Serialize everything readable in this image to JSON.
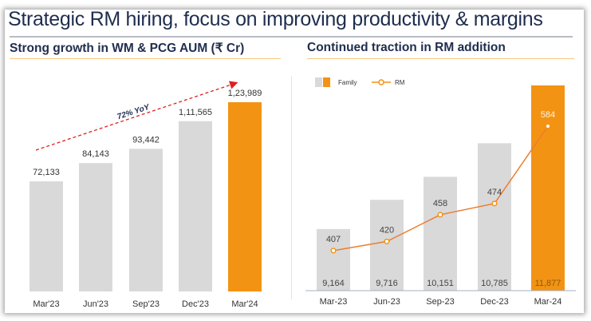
{
  "title": "Strategic RM hiring, focus on improving productivity & margins",
  "colors": {
    "gray_bar": "#d9d9d9",
    "orange": "#f39313",
    "line": "#ed7d31",
    "arrow": "#e02020",
    "text": "#1f2d4e"
  },
  "chart_data": [
    {
      "type": "bar",
      "title": "Strong growth in WM & PCG AUM (₹ Cr)",
      "categories": [
        "Mar'23",
        "Jun'23",
        "Sep'23",
        "Dec'23",
        "Mar'24"
      ],
      "values": [
        72133,
        84143,
        93442,
        111565,
        123989
      ],
      "labels": [
        "72,133",
        "84,143",
        "93,442",
        "1,11,565",
        "1,23,989"
      ],
      "ylim": [
        0,
        124000
      ],
      "annotation": "72% YoY",
      "grid": false
    },
    {
      "type": "bar+line",
      "title": "Continued traction in RM addition",
      "categories": [
        "Mar-23",
        "Jun-23",
        "Sep-23",
        "Dec-23",
        "Mar-24"
      ],
      "series": [
        {
          "name": "Family",
          "type": "bar",
          "values": [
            9164,
            9716,
            10151,
            10785,
            11877
          ],
          "labels": [
            "9,164",
            "9,716",
            "10,151",
            "10,785",
            "11,877"
          ],
          "ylim": [
            8000,
            11877
          ]
        },
        {
          "name": "RM",
          "type": "line",
          "values": [
            407,
            420,
            458,
            474,
            584
          ],
          "labels": [
            "407",
            "420",
            "458",
            "474",
            "584"
          ],
          "ylim": [
            350,
            642
          ]
        }
      ],
      "legend": "top-left",
      "grid": false
    }
  ]
}
